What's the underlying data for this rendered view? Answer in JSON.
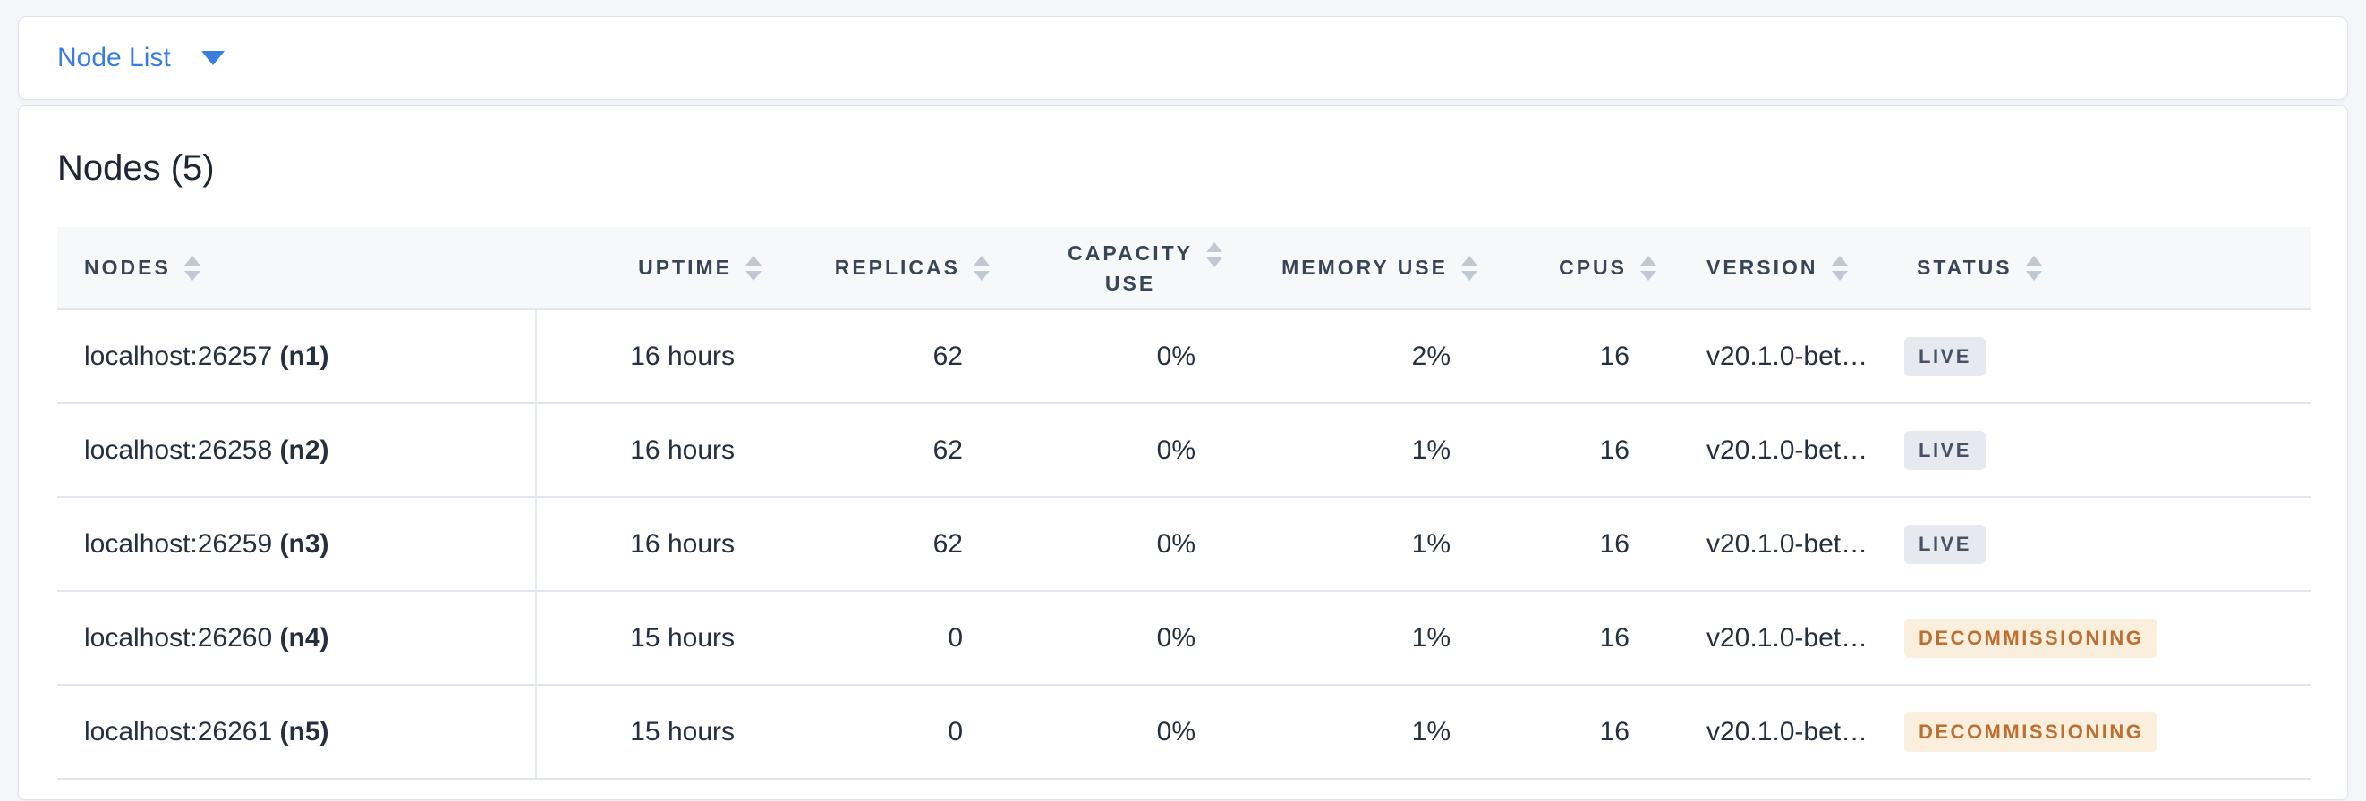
{
  "toolbar": {
    "view_selector_label": "Node List"
  },
  "panel": {
    "title": "Nodes (5)"
  },
  "table": {
    "columns": [
      {
        "key": "nodes",
        "label": "NODES",
        "align": "left"
      },
      {
        "key": "uptime",
        "label": "UPTIME",
        "align": "right"
      },
      {
        "key": "replicas",
        "label": "REPLICAS",
        "align": "right"
      },
      {
        "key": "capacity_use",
        "label": "CAPACITY\nUSE",
        "align": "right"
      },
      {
        "key": "memory_use",
        "label": "MEMORY USE",
        "align": "right"
      },
      {
        "key": "cpus",
        "label": "CPUS",
        "align": "right"
      },
      {
        "key": "version",
        "label": "VERSION",
        "align": "left"
      },
      {
        "key": "status",
        "label": "STATUS",
        "align": "left"
      }
    ],
    "rows": [
      {
        "node_address": "localhost:26257",
        "node_id": "(n1)",
        "uptime": "16 hours",
        "replicas": "62",
        "capacity_use": "0%",
        "memory_use": "2%",
        "cpus": "16",
        "version": "v20.1.0-bet…",
        "status": "LIVE",
        "status_type": "live"
      },
      {
        "node_address": "localhost:26258",
        "node_id": "(n2)",
        "uptime": "16 hours",
        "replicas": "62",
        "capacity_use": "0%",
        "memory_use": "1%",
        "cpus": "16",
        "version": "v20.1.0-bet…",
        "status": "LIVE",
        "status_type": "live"
      },
      {
        "node_address": "localhost:26259",
        "node_id": "(n3)",
        "uptime": "16 hours",
        "replicas": "62",
        "capacity_use": "0%",
        "memory_use": "1%",
        "cpus": "16",
        "version": "v20.1.0-bet…",
        "status": "LIVE",
        "status_type": "live"
      },
      {
        "node_address": "localhost:26260",
        "node_id": "(n4)",
        "uptime": "15 hours",
        "replicas": "0",
        "capacity_use": "0%",
        "memory_use": "1%",
        "cpus": "16",
        "version": "v20.1.0-bet…",
        "status": "DECOMMISSIONING",
        "status_type": "decommissioning"
      },
      {
        "node_address": "localhost:26261",
        "node_id": "(n5)",
        "uptime": "15 hours",
        "replicas": "0",
        "capacity_use": "0%",
        "memory_use": "1%",
        "cpus": "16",
        "version": "v20.1.0-bet…",
        "status": "DECOMMISSIONING",
        "status_type": "decommissioning"
      }
    ]
  },
  "colors": {
    "accent_blue": "#3a7de1",
    "badge_live_bg": "#e6e9f0",
    "badge_live_text": "#475166",
    "badge_decommissioning_bg": "#f9efdc",
    "badge_decommissioning_text": "#bd6e31",
    "page_bg": "#f4f6f9"
  }
}
